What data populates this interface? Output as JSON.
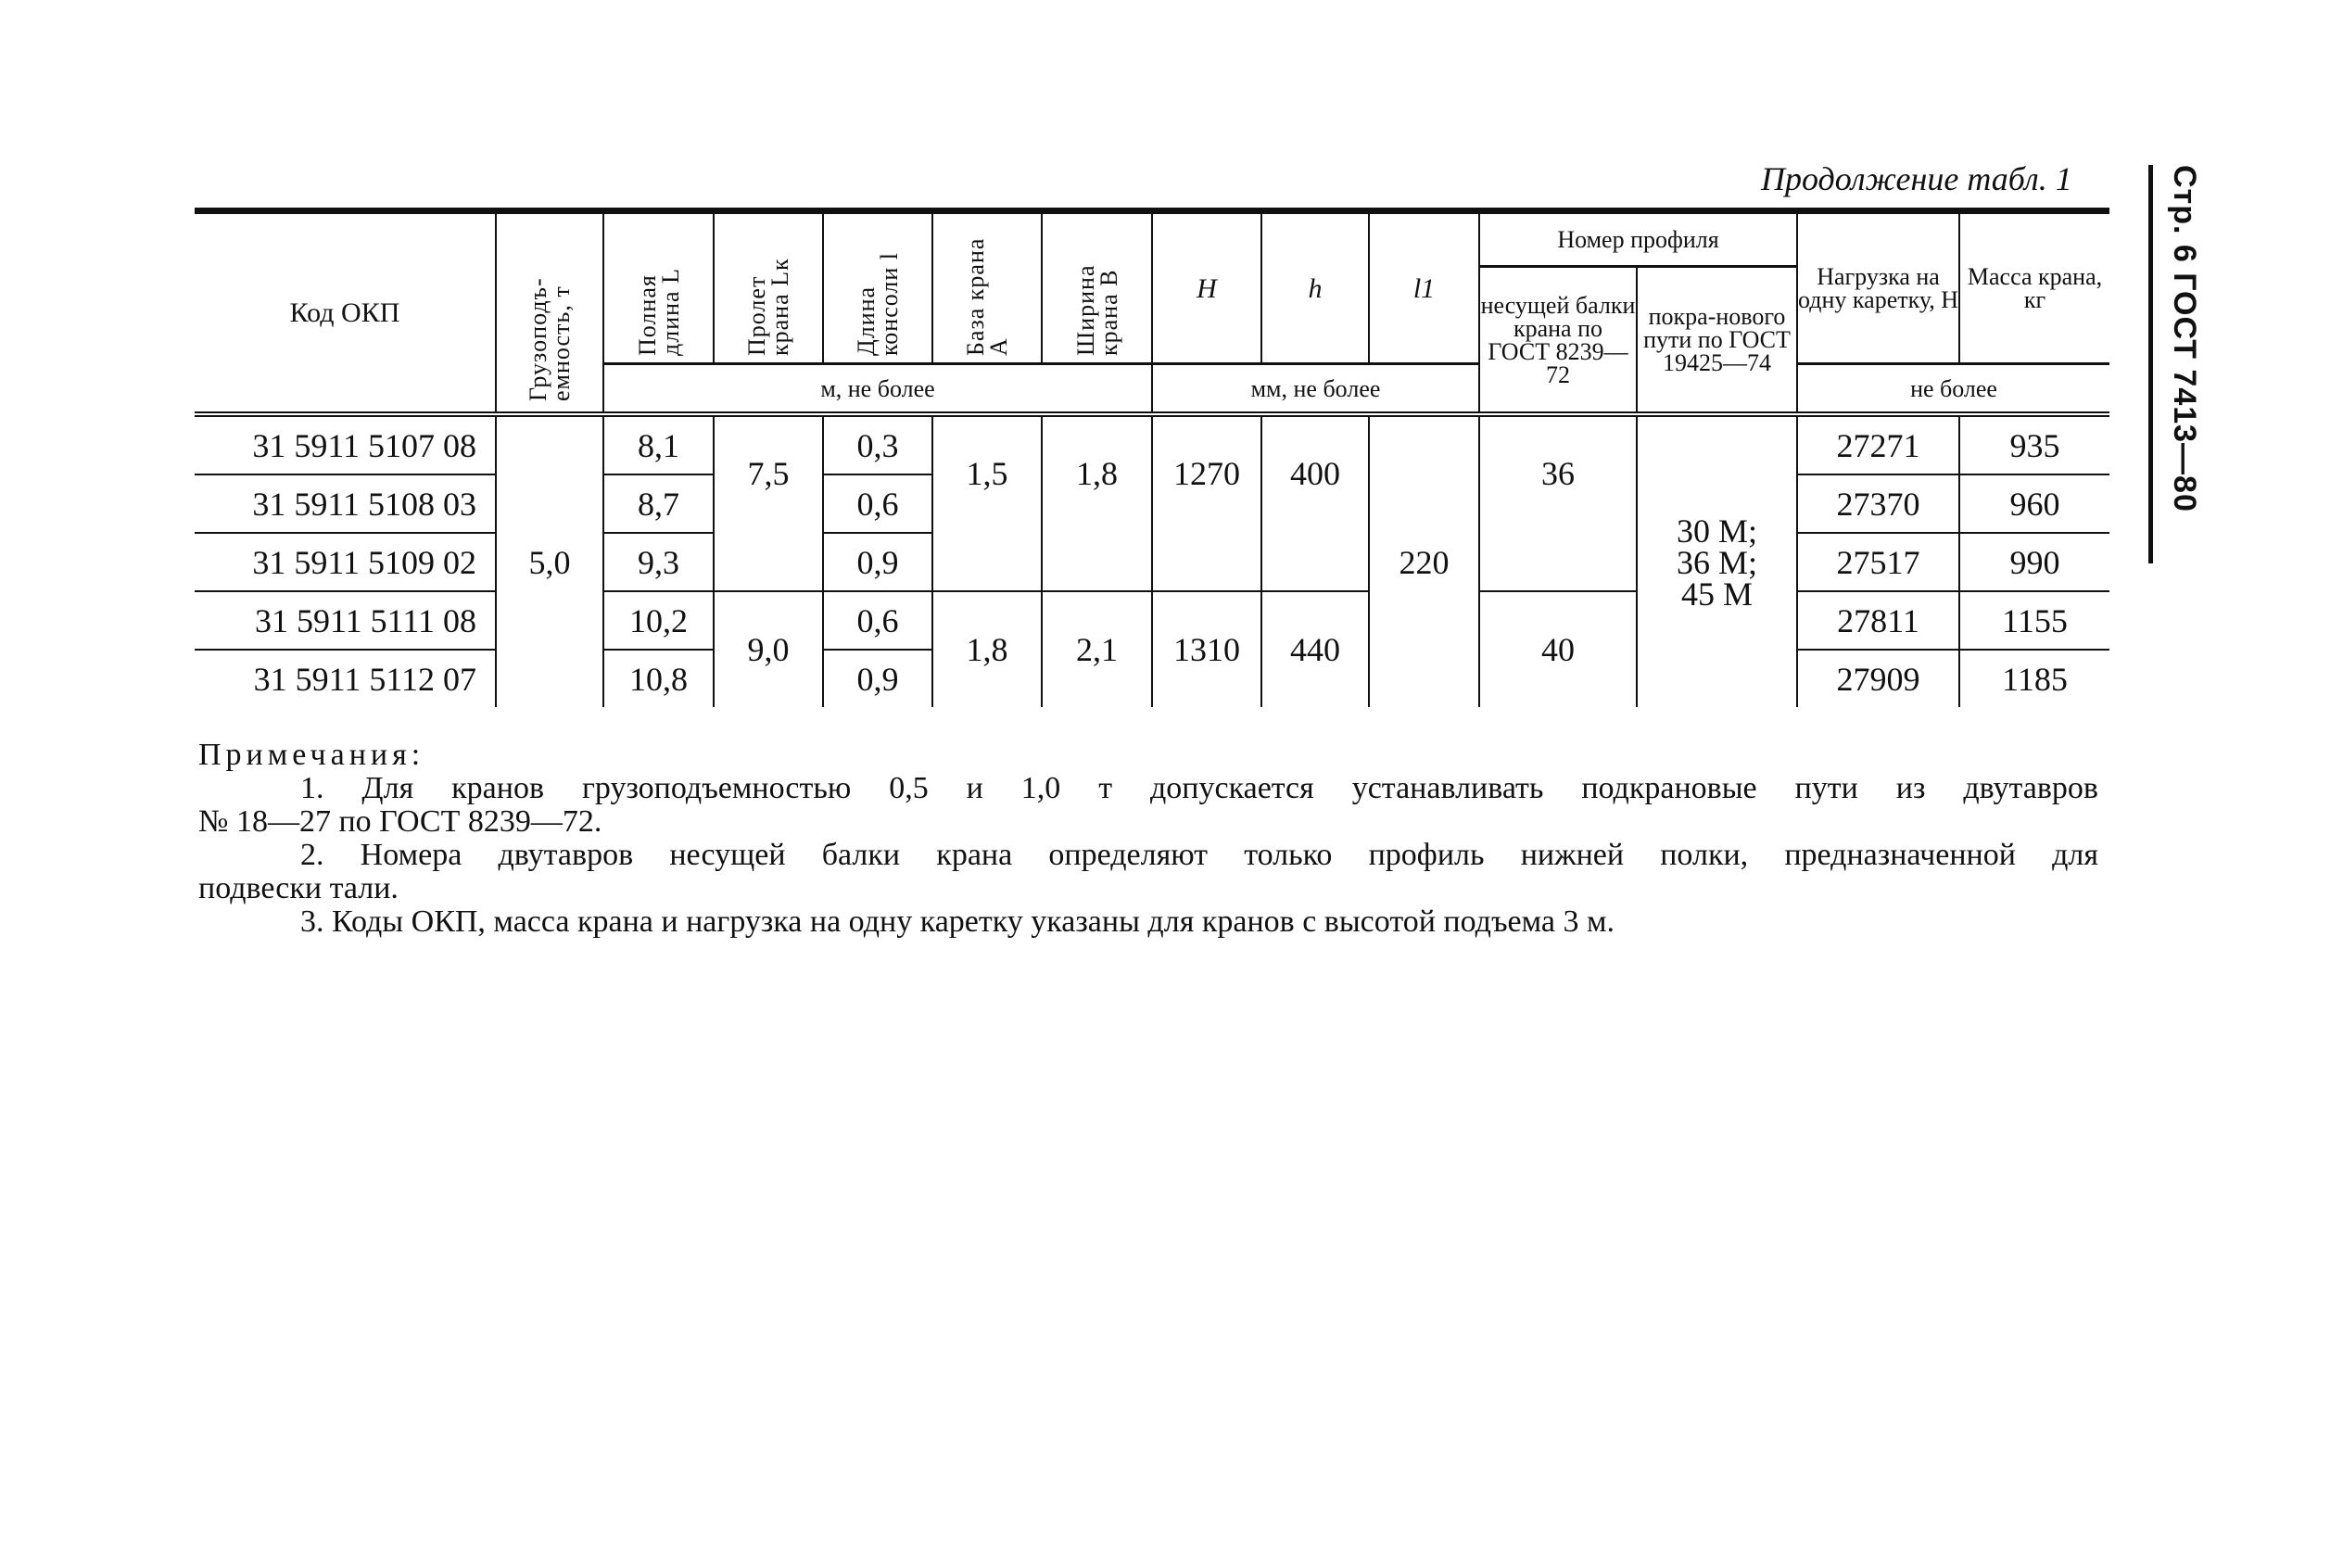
{
  "caption": "Продолжение табл. 1",
  "side_header": "Стр. 6 ГОСТ 7413—80",
  "table": {
    "headers": {
      "code": "Код ОКП",
      "capacity": "Грузоподъ-емность, т",
      "full_length": "Полная длина L",
      "span": "Пролет крана Lк",
      "console": "Длина консоли l",
      "base": "База крана A",
      "width": "Ширина крана B",
      "H": "H",
      "h": "h",
      "l1": "l1",
      "profile_group": "Номер профиля",
      "beam": "несущей балки крана по ГОСТ 8239—72",
      "track": "покра-нового пути по ГОСТ 19425—74",
      "load": "Нагрузка на одну каретку, Н",
      "mass": "Масса крана, кг",
      "units_m": "м, не более",
      "units_mm": "мм, не более",
      "units_max": "не более"
    },
    "rows": [
      {
        "code": "31 5911 5107 08",
        "L": "8,1",
        "l": "0,3",
        "load": "27271",
        "mass": "935"
      },
      {
        "code": "31 5911 5108 03",
        "L": "8,7",
        "l": "0,6",
        "load": "27370",
        "mass": "960"
      },
      {
        "code": "31 5911 5109 02",
        "L": "9,3",
        "l": "0,9",
        "load": "27517",
        "mass": "990"
      },
      {
        "code": "31 5911 5111 08",
        "L": "10,2",
        "l": "0,6",
        "load": "27811",
        "mass": "1155"
      },
      {
        "code": "31 5911 5112 07",
        "L": "10,8",
        "l": "0,9",
        "load": "27909",
        "mass": "1185"
      }
    ],
    "capacity": "5,0",
    "l1": "220",
    "track": "30 М; 36 М; 45 М",
    "groups": [
      {
        "span": "7,5",
        "base": "1,5",
        "width": "1,8",
        "H": "1270",
        "h": "400",
        "beam": "36"
      },
      {
        "span": "9,0",
        "base": "1,8",
        "width": "2,1",
        "H": "1310",
        "h": "440",
        "beam": "40"
      }
    ]
  },
  "notes": {
    "title": "Примечания:",
    "n1a": "1. Для кранов грузоподъемностью 0,5 и 1,0 т допускается устанавливать подкрановые пути из двутавров",
    "n1b": "№ 18—27 по ГОСТ 8239—72.",
    "n2a": "2. Номера двутавров несущей балки крана определяют только профиль нижней полки, предназначенной для",
    "n2b": "подвески тали.",
    "n3": "3. Коды ОКП, масса крана и нагрузка на одну каретку указаны для кранов с высотой подъема 3 м."
  }
}
